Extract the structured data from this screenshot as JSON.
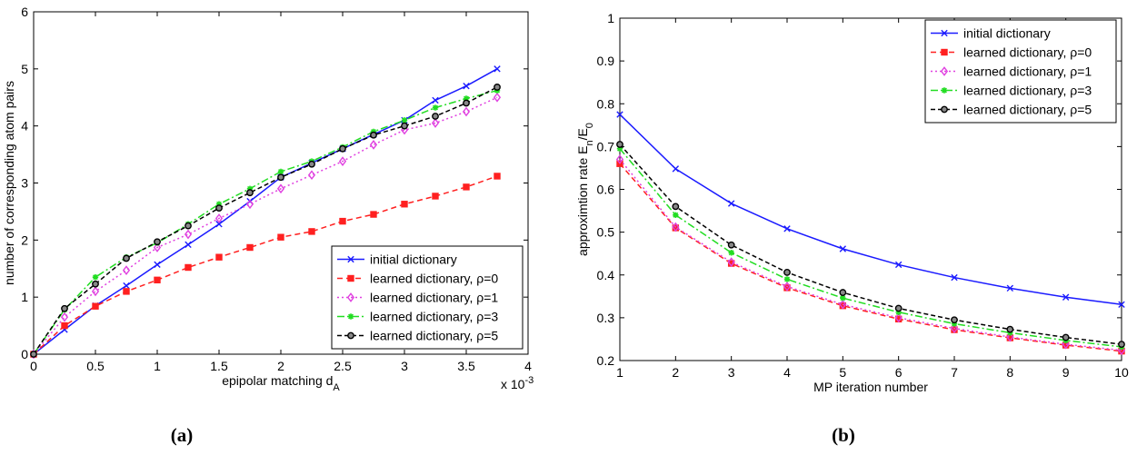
{
  "captions": [
    "(a)",
    "(b)"
  ],
  "chart_data": [
    {
      "type": "line",
      "xlabel": "epipolar matching d",
      "xlabel_sub": "A",
      "ylabel": "number of corresponding atom pairs",
      "x_multiplier": "x 10",
      "x_multiplier_exp": "-3",
      "xlim": [
        0,
        4
      ],
      "ylim": [
        0,
        6
      ],
      "xticks": [
        "0",
        "0.5",
        "1",
        "1.5",
        "2",
        "2.5",
        "3",
        "3.5",
        "4"
      ],
      "yticks": [
        "0",
        "1",
        "2",
        "3",
        "4",
        "5",
        "6"
      ],
      "legend_position": "bottom-right",
      "x": [
        0,
        0.25,
        0.5,
        0.75,
        1,
        1.25,
        1.5,
        1.75,
        2,
        2.25,
        2.5,
        2.75,
        3,
        3.25,
        3.5,
        3.75
      ],
      "series": [
        {
          "name": "initial dictionary",
          "color": "#1a1aff",
          "dash": "",
          "marker": "x",
          "values": [
            0,
            0.43,
            0.85,
            1.2,
            1.57,
            1.92,
            2.28,
            2.68,
            3.1,
            3.35,
            3.6,
            3.85,
            4.1,
            4.45,
            4.7,
            5.0
          ]
        },
        {
          "name": "learned dictionary, ρ=0",
          "color": "#ff2020",
          "dash": "6,4",
          "marker": "square",
          "values": [
            0,
            0.5,
            0.84,
            1.1,
            1.3,
            1.52,
            1.7,
            1.87,
            2.05,
            2.15,
            2.33,
            2.45,
            2.63,
            2.77,
            2.93,
            3.12
          ]
        },
        {
          "name": "learned dictionary, ρ=1",
          "color": "#e040e0",
          "dash": "2,3",
          "marker": "diamond",
          "values": [
            0,
            0.65,
            1.1,
            1.47,
            1.87,
            2.1,
            2.38,
            2.63,
            2.9,
            3.14,
            3.38,
            3.67,
            3.93,
            4.05,
            4.25,
            4.5
          ]
        },
        {
          "name": "learned dictionary, ρ=3",
          "color": "#22dd22",
          "dash": "8,3,2,3",
          "marker": "star",
          "values": [
            0,
            0.78,
            1.35,
            1.7,
            1.95,
            2.28,
            2.63,
            2.9,
            3.2,
            3.38,
            3.63,
            3.9,
            4.1,
            4.32,
            4.48,
            4.62
          ]
        },
        {
          "name": "learned dictionary, ρ=5",
          "color": "#000000",
          "dash": "5,3",
          "marker": "circle",
          "values": [
            0,
            0.8,
            1.23,
            1.68,
            1.97,
            2.25,
            2.56,
            2.83,
            3.1,
            3.33,
            3.6,
            3.84,
            4.0,
            4.17,
            4.4,
            4.68
          ]
        }
      ]
    },
    {
      "type": "line",
      "xlabel": "MP iteration number",
      "ylabel": "approximtion rate E",
      "ylabel_sub1": "n",
      "ylabel_mid": "/E",
      "ylabel_sub2": "0",
      "xlim": [
        1,
        10
      ],
      "ylim": [
        0.2,
        1
      ],
      "xticks": [
        "1",
        "2",
        "3",
        "4",
        "5",
        "6",
        "7",
        "8",
        "9",
        "10"
      ],
      "yticks": [
        "0.2",
        "0.3",
        "0.4",
        "0.5",
        "0.6",
        "0.7",
        "0.8",
        "0.9",
        "1"
      ],
      "legend_position": "top-right",
      "x": [
        1,
        2,
        3,
        4,
        5,
        6,
        7,
        8,
        9,
        10
      ],
      "series": [
        {
          "name": "initial dictionary",
          "color": "#1a1aff",
          "dash": "",
          "marker": "x",
          "values": [
            0.775,
            0.648,
            0.567,
            0.508,
            0.461,
            0.424,
            0.394,
            0.369,
            0.348,
            0.331
          ]
        },
        {
          "name": "learned dictionary, ρ=0",
          "color": "#ff2020",
          "dash": "6,4",
          "marker": "square",
          "values": [
            0.66,
            0.51,
            0.427,
            0.37,
            0.328,
            0.297,
            0.272,
            0.253,
            0.236,
            0.222
          ]
        },
        {
          "name": "learned dictionary, ρ=1",
          "color": "#e040e0",
          "dash": "2,3",
          "marker": "diamond",
          "values": [
            0.67,
            0.512,
            0.43,
            0.373,
            0.331,
            0.3,
            0.275,
            0.255,
            0.238,
            0.224
          ]
        },
        {
          "name": "learned dictionary, ρ=3",
          "color": "#22dd22",
          "dash": "8,3,2,3",
          "marker": "star",
          "values": [
            0.695,
            0.54,
            0.452,
            0.39,
            0.346,
            0.313,
            0.286,
            0.265,
            0.247,
            0.232
          ]
        },
        {
          "name": "learned dictionary, ρ=5",
          "color": "#000000",
          "dash": "5,3",
          "marker": "circle",
          "values": [
            0.705,
            0.56,
            0.47,
            0.406,
            0.359,
            0.322,
            0.295,
            0.273,
            0.254,
            0.238
          ]
        }
      ]
    }
  ]
}
